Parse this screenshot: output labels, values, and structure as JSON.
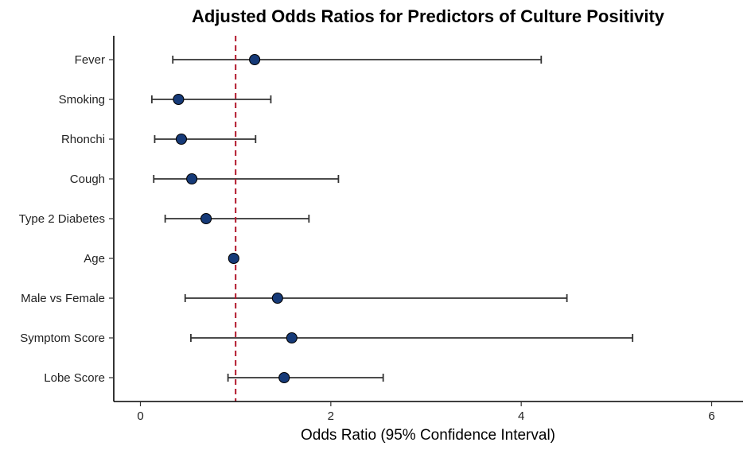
{
  "chart_data": {
    "type": "scatter",
    "subtype": "forest-plot",
    "title": "Adjusted Odds Ratios for Predictors of Culture Positivity",
    "xlabel": "Odds Ratio (95% Confidence Interval)",
    "ylabel": "",
    "xlim": [
      -0.28,
      6.33
    ],
    "xticks": [
      0,
      2,
      4,
      6
    ],
    "reference_line": {
      "x": 1,
      "style": "dashed",
      "color": "#b2182b"
    },
    "grid": false,
    "legend": "none",
    "point_color": "#163a78",
    "categories": [
      "Fever",
      "Smoking",
      "Rhonchi",
      "Cough",
      "Type 2 Diabetes",
      "Age",
      "Male vs Female",
      "Symptom Score",
      "Lobe Score"
    ],
    "points": [
      {
        "label": "Fever",
        "or": 1.2,
        "lower": 0.34,
        "upper": 4.21
      },
      {
        "label": "Smoking",
        "or": 0.4,
        "lower": 0.12,
        "upper": 1.37
      },
      {
        "label": "Rhonchi",
        "or": 0.43,
        "lower": 0.15,
        "upper": 1.21
      },
      {
        "label": "Cough",
        "or": 0.54,
        "lower": 0.14,
        "upper": 2.08
      },
      {
        "label": "Type 2 Diabetes",
        "or": 0.69,
        "lower": 0.26,
        "upper": 1.77
      },
      {
        "label": "Age",
        "or": 0.98,
        "lower": 0.96,
        "upper": 1.01
      },
      {
        "label": "Male vs Female",
        "or": 1.44,
        "lower": 0.47,
        "upper": 4.48
      },
      {
        "label": "Symptom Score",
        "or": 1.59,
        "lower": 0.53,
        "upper": 5.17
      },
      {
        "label": "Lobe Score",
        "or": 1.51,
        "lower": 0.92,
        "upper": 2.55
      }
    ]
  }
}
